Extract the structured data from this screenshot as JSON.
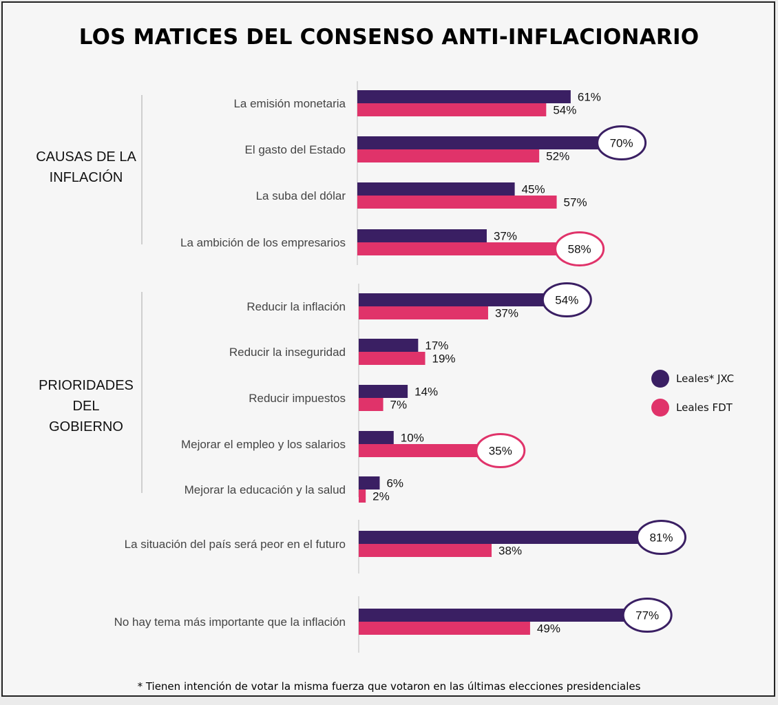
{
  "title": "LOS MATICES DEL CONSENSO ANTI-INFLACIONARIO",
  "footnote": "* Tienen intención de votar la misma fuerza que votaron en las últimas elecciones presidenciales",
  "groups": {
    "causas": [
      "CAUSAS DE LA",
      "INFLACIÓN"
    ],
    "prioridades": [
      "PRIORIDADES",
      "DEL",
      "GOBIERNO"
    ]
  },
  "colors": {
    "jxc": "#3a1f63",
    "fdt": "#e0336a"
  },
  "chart_data": {
    "type": "bar",
    "orientation": "horizontal",
    "title": "LOS MATICES DEL CONSENSO ANTI-INFLACIONARIO",
    "categories": [
      "La emisión monetaria",
      "El gasto del Estado",
      "La suba del dólar",
      "La ambición de los empresarios",
      "Reducir la inflación",
      "Reducir la inseguridad",
      "Reducir impuestos",
      "Mejorar el empleo y los salarios",
      "Mejorar la educación y la salud",
      "La situación del país será peor en el futuro",
      "No hay tema más importante que la inflación"
    ],
    "series": [
      {
        "name": "Leales* JXC",
        "values": [
          61,
          70,
          45,
          37,
          54,
          17,
          14,
          10,
          6,
          81,
          77
        ]
      },
      {
        "name": "Leales FDT",
        "values": [
          54,
          52,
          57,
          58,
          37,
          19,
          7,
          35,
          2,
          38,
          49
        ]
      }
    ],
    "value_labels": {
      "Leales* JXC": [
        "61%",
        "70%",
        "45%",
        "37%",
        "54%",
        "17%",
        "14%",
        "10%",
        "6%",
        "81%",
        "77%"
      ],
      "Leales FDT": [
        "54%",
        "52%",
        "57%",
        "58%",
        "37%",
        "19%",
        "7%",
        "35%",
        "2%",
        "38%",
        "49%"
      ]
    },
    "highlighted": [
      {
        "category": "El gasto del Estado",
        "series": "Leales* JXC"
      },
      {
        "category": "La ambición de los empresarios",
        "series": "Leales FDT"
      },
      {
        "category": "Reducir la inflación",
        "series": "Leales* JXC"
      },
      {
        "category": "Mejorar el empleo y los salarios",
        "series": "Leales FDT"
      },
      {
        "category": "La situación del país será peor en el futuro",
        "series": "Leales* JXC"
      },
      {
        "category": "No hay tema más importante que la inflación",
        "series": "Leales* JXC"
      }
    ],
    "legend": "right",
    "grid": false
  }
}
